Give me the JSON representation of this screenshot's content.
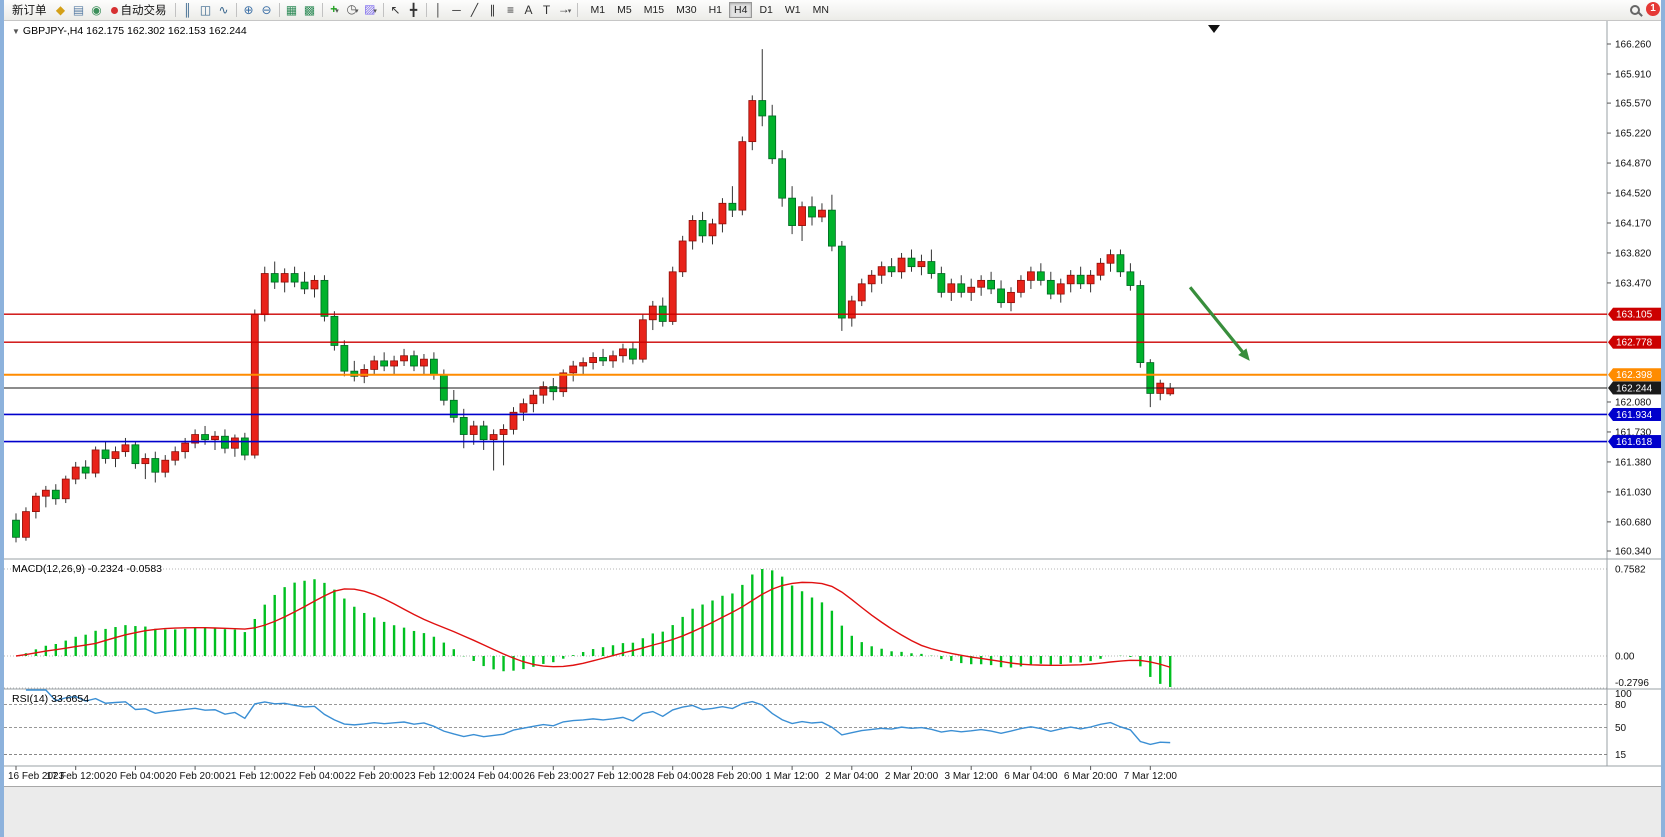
{
  "toolbar": {
    "badge_count": "1",
    "active_timeframe": "H4",
    "timeframes": [
      "M1",
      "M5",
      "M15",
      "M30",
      "H1",
      "H4",
      "D1",
      "W1",
      "MN"
    ],
    "items": [
      {
        "type": "button",
        "name": "new-order-button",
        "label": "新订单"
      },
      {
        "type": "icon",
        "name": "chart-profiles-icon",
        "glyph": "◆",
        "color": "#D4A017"
      },
      {
        "type": "icon",
        "name": "terminal-window-icon",
        "glyph": "▤",
        "color": "#5B7FA6"
      },
      {
        "type": "icon",
        "name": "strategy-tester-icon",
        "glyph": "◉",
        "color": "#3C8F5A"
      },
      {
        "type": "button",
        "name": "auto-trading-button",
        "label": "自动交易",
        "dot": "#D63031"
      },
      {
        "type": "sep"
      },
      {
        "type": "icon",
        "name": "bar-chart-icon",
        "glyph": "║",
        "color": "#36648B"
      },
      {
        "type": "icon",
        "name": "candlestick-chart-icon",
        "glyph": "◫",
        "color": "#36648B"
      },
      {
        "type": "icon",
        "name": "line-chart-icon",
        "glyph": "∿",
        "color": "#36648B"
      },
      {
        "type": "sep"
      },
      {
        "type": "icon",
        "name": "zoom-in-icon",
        "glyph": "⊕",
        "color": "#3A6EA5"
      },
      {
        "type": "icon",
        "name": "zoom-out-icon",
        "glyph": "⊖",
        "color": "#3A6EA5"
      },
      {
        "type": "sep"
      },
      {
        "type": "icon",
        "name": "tile-windows-icon",
        "glyph": "▦",
        "color": "#2E8B57"
      },
      {
        "type": "icon",
        "name": "cascade-windows-icon",
        "glyph": "▩",
        "color": "#2E8B57"
      },
      {
        "type": "sep"
      },
      {
        "type": "icon",
        "name": "indicators-icon",
        "glyph": "+",
        "color": "#1FA01F",
        "bold": true,
        "caret": "▾"
      },
      {
        "type": "icon",
        "name": "periods-icon",
        "glyph": "◷",
        "color": "#555555",
        "caret": "▾"
      },
      {
        "type": "icon",
        "name": "template-icon",
        "glyph": "▨",
        "color": "#7B68EE",
        "caret": "▾"
      },
      {
        "type": "sep"
      },
      {
        "type": "icon",
        "name": "cursor-icon",
        "glyph": "↖",
        "color": "#333333"
      },
      {
        "type": "icon",
        "name": "crosshair-icon",
        "glyph": "╋",
        "color": "#333333"
      },
      {
        "type": "sep"
      },
      {
        "type": "icon",
        "name": "vertical-line-icon",
        "glyph": "│",
        "color": "#333333"
      },
      {
        "type": "icon",
        "name": "horizontal-line-icon",
        "glyph": "─",
        "color": "#333333"
      },
      {
        "type": "icon",
        "name": "trendline-icon",
        "glyph": "╱",
        "color": "#333333"
      },
      {
        "type": "icon",
        "name": "channel-icon",
        "glyph": "∥",
        "color": "#333333"
      },
      {
        "type": "icon",
        "name": "fibonacci-icon",
        "glyph": "≡",
        "color": "#333333"
      },
      {
        "type": "icon",
        "name": "text-icon",
        "glyph": "A",
        "color": "#333333"
      },
      {
        "type": "icon",
        "name": "label-icon",
        "glyph": "T",
        "color": "#333333"
      },
      {
        "type": "icon",
        "name": "arrows-icon",
        "glyph": "→",
        "color": "#333333",
        "caret": "▾"
      },
      {
        "type": "sep"
      }
    ]
  },
  "chart_ui": {
    "collapse_glyph": "▼",
    "shift_marker_glyph": "▼"
  },
  "chart_data": {
    "type": "candlestick",
    "title": "GBPJPY-,H4 162.175 162.302 162.153 162.244",
    "symbol": "GBPJPY-",
    "timeframe": "H4",
    "current_ohlc": {
      "open": "162.175",
      "high": "162.302",
      "low": "162.153",
      "close": "162.244"
    },
    "ylim": [
      160.34,
      166.26
    ],
    "price_ticks": [
      "166.260",
      "165.910",
      "165.570",
      "165.220",
      "164.870",
      "164.520",
      "164.170",
      "163.820",
      "163.470",
      "162.080",
      "161.730",
      "161.380",
      "161.030",
      "160.680",
      "160.340"
    ],
    "time_labels": [
      "16 Feb 2023",
      "17 Feb 12:00",
      "20 Feb 04:00",
      "20 Feb 20:00",
      "21 Feb 12:00",
      "22 Feb 04:00",
      "22 Feb 20:00",
      "23 Feb 12:00",
      "24 Feb 04:00",
      "26 Feb 23:00",
      "27 Feb 12:00",
      "28 Feb 04:00",
      "28 Feb 20:00",
      "1 Mar 12:00",
      "2 Mar 04:00",
      "2 Mar 20:00",
      "3 Mar 12:00",
      "6 Mar 04:00",
      "6 Mar 20:00",
      "7 Mar 12:00"
    ],
    "horizontal_lines": [
      {
        "name": "resistance-line-1",
        "price": 163.105,
        "label": "163.105",
        "color": "#CC0000",
        "width": 1.3
      },
      {
        "name": "resistance-line-2",
        "price": 162.778,
        "label": "162.778",
        "color": "#CC0000",
        "width": 1.3
      },
      {
        "name": "support-line-orange",
        "price": 162.398,
        "label": "162.398",
        "color": "#FF8C00",
        "width": 2
      },
      {
        "name": "bid-price-line",
        "price": 162.244,
        "label": "162.244",
        "color": "#1A1A1A",
        "width": 1
      },
      {
        "name": "support-line-blue-1",
        "price": 161.934,
        "label": "161.934",
        "color": "#0000CC",
        "width": 1.6
      },
      {
        "name": "support-line-blue-2",
        "price": 161.618,
        "label": "161.618",
        "color": "#0000CC",
        "width": 1.6
      }
    ],
    "arrow_annotation": {
      "from_index": 118,
      "from_price": 163.42,
      "to_index": 124,
      "to_price": 162.56,
      "color": "#388E3C"
    },
    "macd": {
      "label_text": "MACD(12,26,9) -0.2324 -0.0583",
      "params": [
        12,
        26,
        9
      ],
      "value": "-0.2324",
      "signal": "-0.0583",
      "scale_labels": [
        "0.7582",
        "0.00",
        "-0.2796"
      ]
    },
    "rsi": {
      "label_text": "RSI(14) 33.6654",
      "period": 14,
      "value": "33.6654",
      "scale_labels": [
        "100",
        "80",
        "50",
        "15"
      ],
      "levels": [
        80,
        50,
        15
      ]
    },
    "colors": {
      "up": "#E8231A",
      "up_border": "#8F0E08",
      "down": "#00B22B",
      "down_border": "#006622",
      "wick": "#333333",
      "macd_hist": "#00C020",
      "macd_signal": "#E01010",
      "rsi_line": "#3B8FD4",
      "grid": "#9E9E9E",
      "axis_text": "#111111"
    },
    "ohlc": [
      [
        160.7,
        160.78,
        160.44,
        160.5
      ],
      [
        160.5,
        160.85,
        160.46,
        160.8
      ],
      [
        160.8,
        161.02,
        160.72,
        160.98
      ],
      [
        160.98,
        161.1,
        160.85,
        161.05
      ],
      [
        161.05,
        161.12,
        160.88,
        160.95
      ],
      [
        160.95,
        161.22,
        160.9,
        161.18
      ],
      [
        161.18,
        161.38,
        161.12,
        161.32
      ],
      [
        161.32,
        161.4,
        161.18,
        161.25
      ],
      [
        161.25,
        161.56,
        161.2,
        161.52
      ],
      [
        161.52,
        161.62,
        161.36,
        161.42
      ],
      [
        161.42,
        161.56,
        161.32,
        161.5
      ],
      [
        161.5,
        161.66,
        161.44,
        161.58
      ],
      [
        161.58,
        161.62,
        161.3,
        161.36
      ],
      [
        161.36,
        161.48,
        161.18,
        161.42
      ],
      [
        161.42,
        161.5,
        161.14,
        161.26
      ],
      [
        161.26,
        161.46,
        161.2,
        161.4
      ],
      [
        161.4,
        161.56,
        161.34,
        161.5
      ],
      [
        161.5,
        161.66,
        161.42,
        161.6
      ],
      [
        161.6,
        161.76,
        161.54,
        161.7
      ],
      [
        161.7,
        161.8,
        161.58,
        161.64
      ],
      [
        161.64,
        161.74,
        161.52,
        161.68
      ],
      [
        161.68,
        161.76,
        161.48,
        161.54
      ],
      [
        161.54,
        161.7,
        161.44,
        161.66
      ],
      [
        161.66,
        161.72,
        161.4,
        161.46
      ],
      [
        161.46,
        163.16,
        161.42,
        163.1
      ],
      [
        163.1,
        163.66,
        163.02,
        163.58
      ],
      [
        163.58,
        163.72,
        163.4,
        163.48
      ],
      [
        163.48,
        163.64,
        163.36,
        163.58
      ],
      [
        163.58,
        163.66,
        163.42,
        163.48
      ],
      [
        163.48,
        163.6,
        163.34,
        163.4
      ],
      [
        163.4,
        163.56,
        163.3,
        163.5
      ],
      [
        163.5,
        163.56,
        163.02,
        163.08
      ],
      [
        163.08,
        163.14,
        162.68,
        162.74
      ],
      [
        162.74,
        162.8,
        162.38,
        162.44
      ],
      [
        162.44,
        162.56,
        162.32,
        162.38
      ],
      [
        162.38,
        162.52,
        162.3,
        162.46
      ],
      [
        162.46,
        162.62,
        162.4,
        162.56
      ],
      [
        162.56,
        162.66,
        162.44,
        162.5
      ],
      [
        162.5,
        162.62,
        162.4,
        162.56
      ],
      [
        162.56,
        162.7,
        162.5,
        162.62
      ],
      [
        162.62,
        162.68,
        162.44,
        162.5
      ],
      [
        162.5,
        162.64,
        162.4,
        162.58
      ],
      [
        162.58,
        162.66,
        162.34,
        162.4
      ],
      [
        162.4,
        162.46,
        162.04,
        162.1
      ],
      [
        162.1,
        162.22,
        161.84,
        161.9
      ],
      [
        161.9,
        162.0,
        161.54,
        161.7
      ],
      [
        161.7,
        161.86,
        161.58,
        161.8
      ],
      [
        161.8,
        161.86,
        161.52,
        161.64
      ],
      [
        161.64,
        161.76,
        161.28,
        161.7
      ],
      [
        161.7,
        161.82,
        161.34,
        161.76
      ],
      [
        161.76,
        162.02,
        161.7,
        161.96
      ],
      [
        161.96,
        162.12,
        161.86,
        162.06
      ],
      [
        162.06,
        162.22,
        161.96,
        162.16
      ],
      [
        162.16,
        162.32,
        162.06,
        162.26
      ],
      [
        162.26,
        162.36,
        162.1,
        162.2
      ],
      [
        162.2,
        162.46,
        162.14,
        162.42
      ],
      [
        162.42,
        162.56,
        162.32,
        162.5
      ],
      [
        162.5,
        162.6,
        162.4,
        162.54
      ],
      [
        162.54,
        162.66,
        162.46,
        162.6
      ],
      [
        162.6,
        162.7,
        162.5,
        162.56
      ],
      [
        162.56,
        162.68,
        162.48,
        162.62
      ],
      [
        162.62,
        162.76,
        162.54,
        162.7
      ],
      [
        162.7,
        162.78,
        162.52,
        162.58
      ],
      [
        162.58,
        163.1,
        162.54,
        163.04
      ],
      [
        163.04,
        163.26,
        162.92,
        163.2
      ],
      [
        163.2,
        163.3,
        162.96,
        163.02
      ],
      [
        163.02,
        163.66,
        162.98,
        163.6
      ],
      [
        163.6,
        164.02,
        163.54,
        163.96
      ],
      [
        163.96,
        164.26,
        163.86,
        164.2
      ],
      [
        164.2,
        164.3,
        163.94,
        164.02
      ],
      [
        164.02,
        164.22,
        163.92,
        164.16
      ],
      [
        164.16,
        164.46,
        164.06,
        164.4
      ],
      [
        164.4,
        164.6,
        164.24,
        164.32
      ],
      [
        164.32,
        165.18,
        164.26,
        165.12
      ],
      [
        165.12,
        165.66,
        165.02,
        165.6
      ],
      [
        165.6,
        166.2,
        165.3,
        165.42
      ],
      [
        165.42,
        165.55,
        164.86,
        164.92
      ],
      [
        164.92,
        165.02,
        164.36,
        164.46
      ],
      [
        164.46,
        164.6,
        164.04,
        164.14
      ],
      [
        164.14,
        164.42,
        163.96,
        164.36
      ],
      [
        164.36,
        164.48,
        164.14,
        164.24
      ],
      [
        164.24,
        164.4,
        164.18,
        164.32
      ],
      [
        164.32,
        164.5,
        163.84,
        163.9
      ],
      [
        163.9,
        163.96,
        162.91,
        163.06
      ],
      [
        163.06,
        163.32,
        162.96,
        163.26
      ],
      [
        163.26,
        163.52,
        163.2,
        163.46
      ],
      [
        163.46,
        163.62,
        163.36,
        163.56
      ],
      [
        163.56,
        163.72,
        163.46,
        163.66
      ],
      [
        163.66,
        163.76,
        163.54,
        163.6
      ],
      [
        163.6,
        163.82,
        163.52,
        163.76
      ],
      [
        163.76,
        163.86,
        163.6,
        163.66
      ],
      [
        163.66,
        163.8,
        163.56,
        163.72
      ],
      [
        163.72,
        163.86,
        163.52,
        163.58
      ],
      [
        163.58,
        163.66,
        163.3,
        163.36
      ],
      [
        163.36,
        163.52,
        163.26,
        163.46
      ],
      [
        163.46,
        163.56,
        163.3,
        163.36
      ],
      [
        163.36,
        163.52,
        163.26,
        163.42
      ],
      [
        163.42,
        163.56,
        163.32,
        163.5
      ],
      [
        163.5,
        163.6,
        163.34,
        163.4
      ],
      [
        163.4,
        163.5,
        163.18,
        163.24
      ],
      [
        163.24,
        163.42,
        163.14,
        163.36
      ],
      [
        163.36,
        163.56,
        163.3,
        163.5
      ],
      [
        163.5,
        163.66,
        163.4,
        163.6
      ],
      [
        163.6,
        163.7,
        163.44,
        163.5
      ],
      [
        163.5,
        163.6,
        163.28,
        163.34
      ],
      [
        163.34,
        163.52,
        163.24,
        163.46
      ],
      [
        163.46,
        163.62,
        163.36,
        163.56
      ],
      [
        163.56,
        163.66,
        163.4,
        163.46
      ],
      [
        163.46,
        163.62,
        163.36,
        163.56
      ],
      [
        163.56,
        163.76,
        163.5,
        163.7
      ],
      [
        163.7,
        163.86,
        163.6,
        163.8
      ],
      [
        163.8,
        163.86,
        163.54,
        163.6
      ],
      [
        163.6,
        163.7,
        163.38,
        163.44
      ],
      [
        163.44,
        163.5,
        162.48,
        162.54
      ],
      [
        162.54,
        162.58,
        162.02,
        162.18
      ],
      [
        162.18,
        162.34,
        162.1,
        162.3
      ],
      [
        162.175,
        162.302,
        162.153,
        162.244
      ]
    ]
  }
}
